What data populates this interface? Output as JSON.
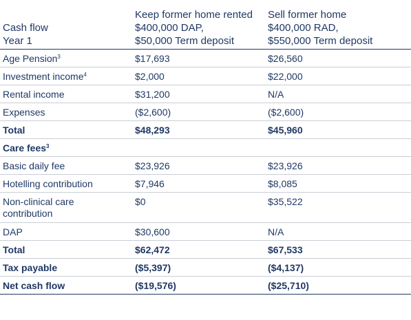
{
  "header": {
    "label_line1": "Cash flow",
    "label_line2": "Year 1",
    "col1": {
      "line1": "Keep former home rented",
      "line2": "$400,000 DAP,",
      "line3": "$50,000 Term deposit"
    },
    "col2": {
      "line1": "Sell former home",
      "line2": "$400,000 RAD,",
      "line3": "$550,000 Term deposit"
    }
  },
  "rows": [
    {
      "label": "Age Pension",
      "sup": "3",
      "v1": "$17,693",
      "v2": "$26,560"
    },
    {
      "label": "Investment income",
      "sup": "4",
      "v1": "$2,000",
      "v2": "$22,000"
    },
    {
      "label": "Rental income",
      "v1": "$31,200",
      "v2": "N/A"
    },
    {
      "label": "Expenses",
      "v1": "($2,600)",
      "v2": "($2,600)"
    },
    {
      "label": "Total",
      "v1": "$48,293",
      "v2": "$45,960"
    },
    {
      "label": "Care fees",
      "sup": "3"
    },
    {
      "label": "Basic daily fee",
      "v1": "$23,926",
      "v2": "$23,926"
    },
    {
      "label": "Hotelling contribution",
      "v1": "$7,946",
      "v2": "$8,085"
    },
    {
      "label_line1": "Non-clinical care",
      "label_line2": "contribution",
      "v1": "$0",
      "v2": "$35,522"
    },
    {
      "label": "DAP",
      "v1": "$30,600",
      "v2": "N/A"
    },
    {
      "label": "Total",
      "v1": "$62,472",
      "v2": "$67,533"
    },
    {
      "label": "Tax payable",
      "v1": "($5,397)",
      "v2": "($4,137)"
    },
    {
      "label": "Net cash flow",
      "v1": "($19,576)",
      "v2": "($25,710)"
    }
  ]
}
